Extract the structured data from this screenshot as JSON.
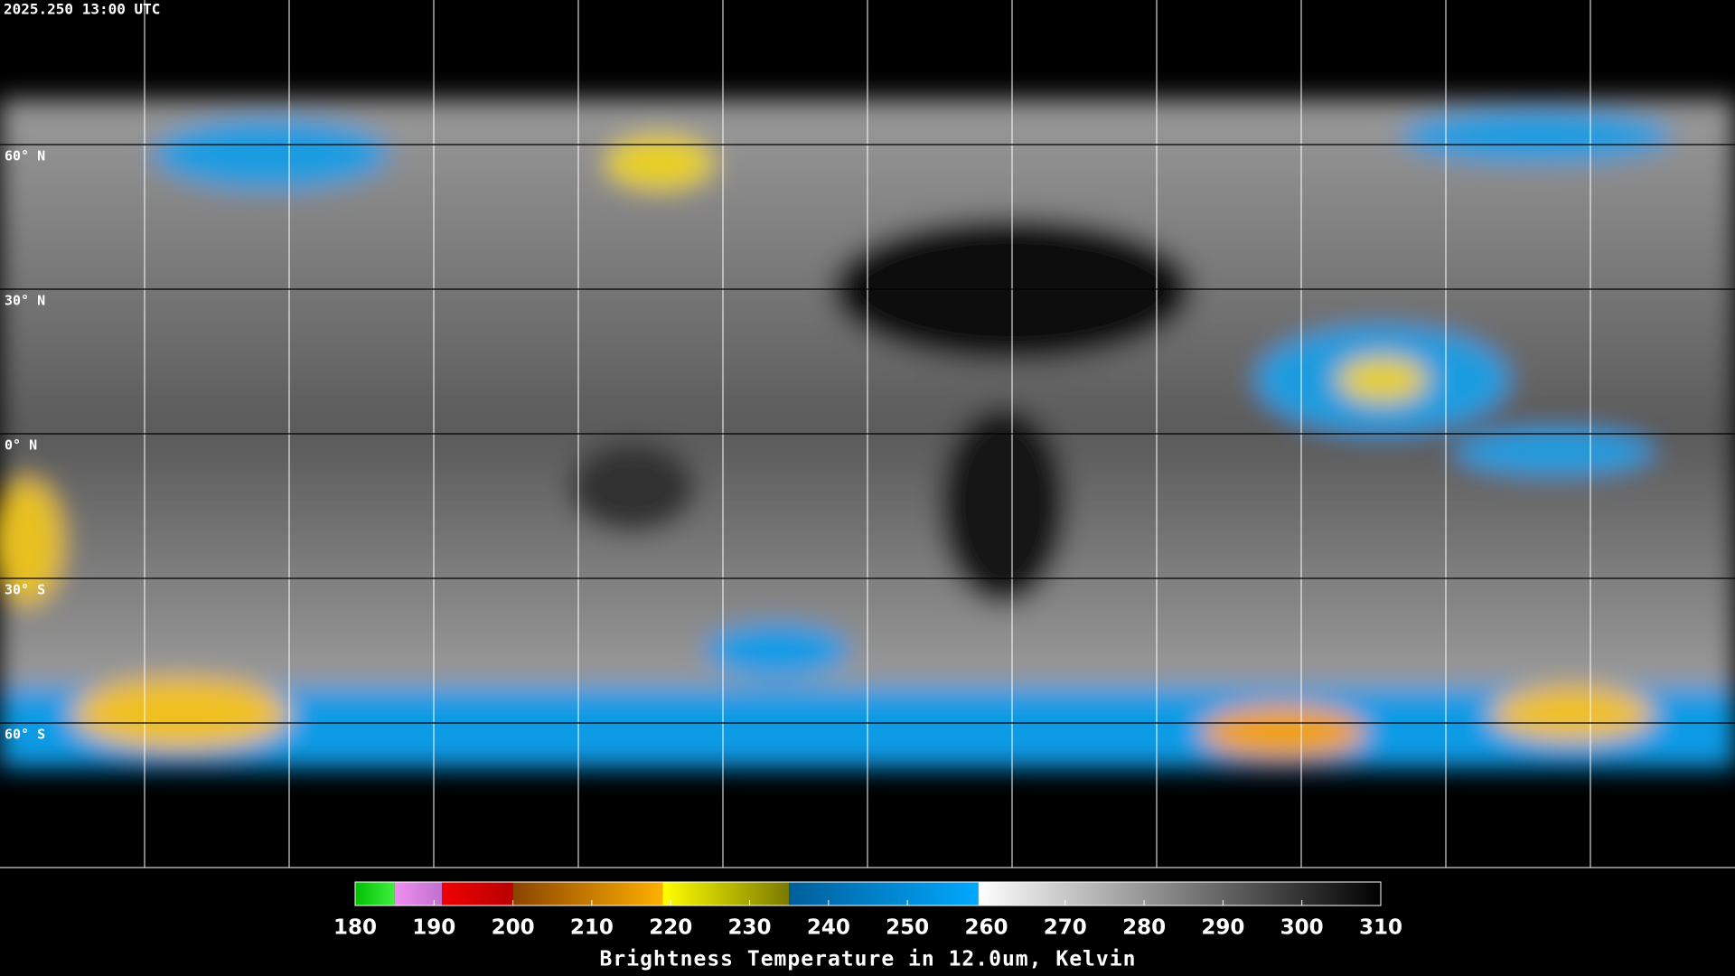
{
  "header": {
    "timestamp": "2025.250 13:00 UTC"
  },
  "map": {
    "lonlim": [
      -180,
      180
    ],
    "latlim": [
      -90,
      90
    ],
    "meridians": [
      -150,
      -120,
      -90,
      -60,
      -30,
      0,
      30,
      60,
      90,
      120,
      150
    ],
    "parallels": [
      {
        "value": 60,
        "label": "60° N"
      },
      {
        "value": 30,
        "label": "30° N"
      },
      {
        "value": 0,
        "label": "0° N"
      },
      {
        "value": -30,
        "label": "30° S"
      },
      {
        "value": -60,
        "label": "60° S"
      }
    ],
    "grid_color": "#ffffff"
  },
  "colorbar": {
    "title": "Brightness Temperature in 12.0um, Kelvin",
    "lim": [
      180,
      310
    ],
    "ticks": [
      180,
      190,
      200,
      210,
      220,
      230,
      240,
      250,
      260,
      270,
      280,
      290,
      300,
      310
    ],
    "segments": [
      {
        "from": 180,
        "to": 185,
        "colors": [
          "#00c000",
          "#40f040"
        ]
      },
      {
        "from": 185,
        "to": 191,
        "colors": [
          "#f090f0",
          "#c070d0"
        ]
      },
      {
        "from": 191,
        "to": 200,
        "colors": [
          "#f00000",
          "#b80000"
        ]
      },
      {
        "from": 200,
        "to": 219,
        "colors": [
          "#8a4400",
          "#ffb000"
        ]
      },
      {
        "from": 219,
        "to": 235,
        "colors": [
          "#ffff00",
          "#7a7a00"
        ]
      },
      {
        "from": 235,
        "to": 259,
        "colors": [
          "#005f9a",
          "#00a8ff"
        ]
      },
      {
        "from": 259,
        "to": 310,
        "colors": [
          "#ffffff",
          "#000000"
        ]
      }
    ]
  }
}
